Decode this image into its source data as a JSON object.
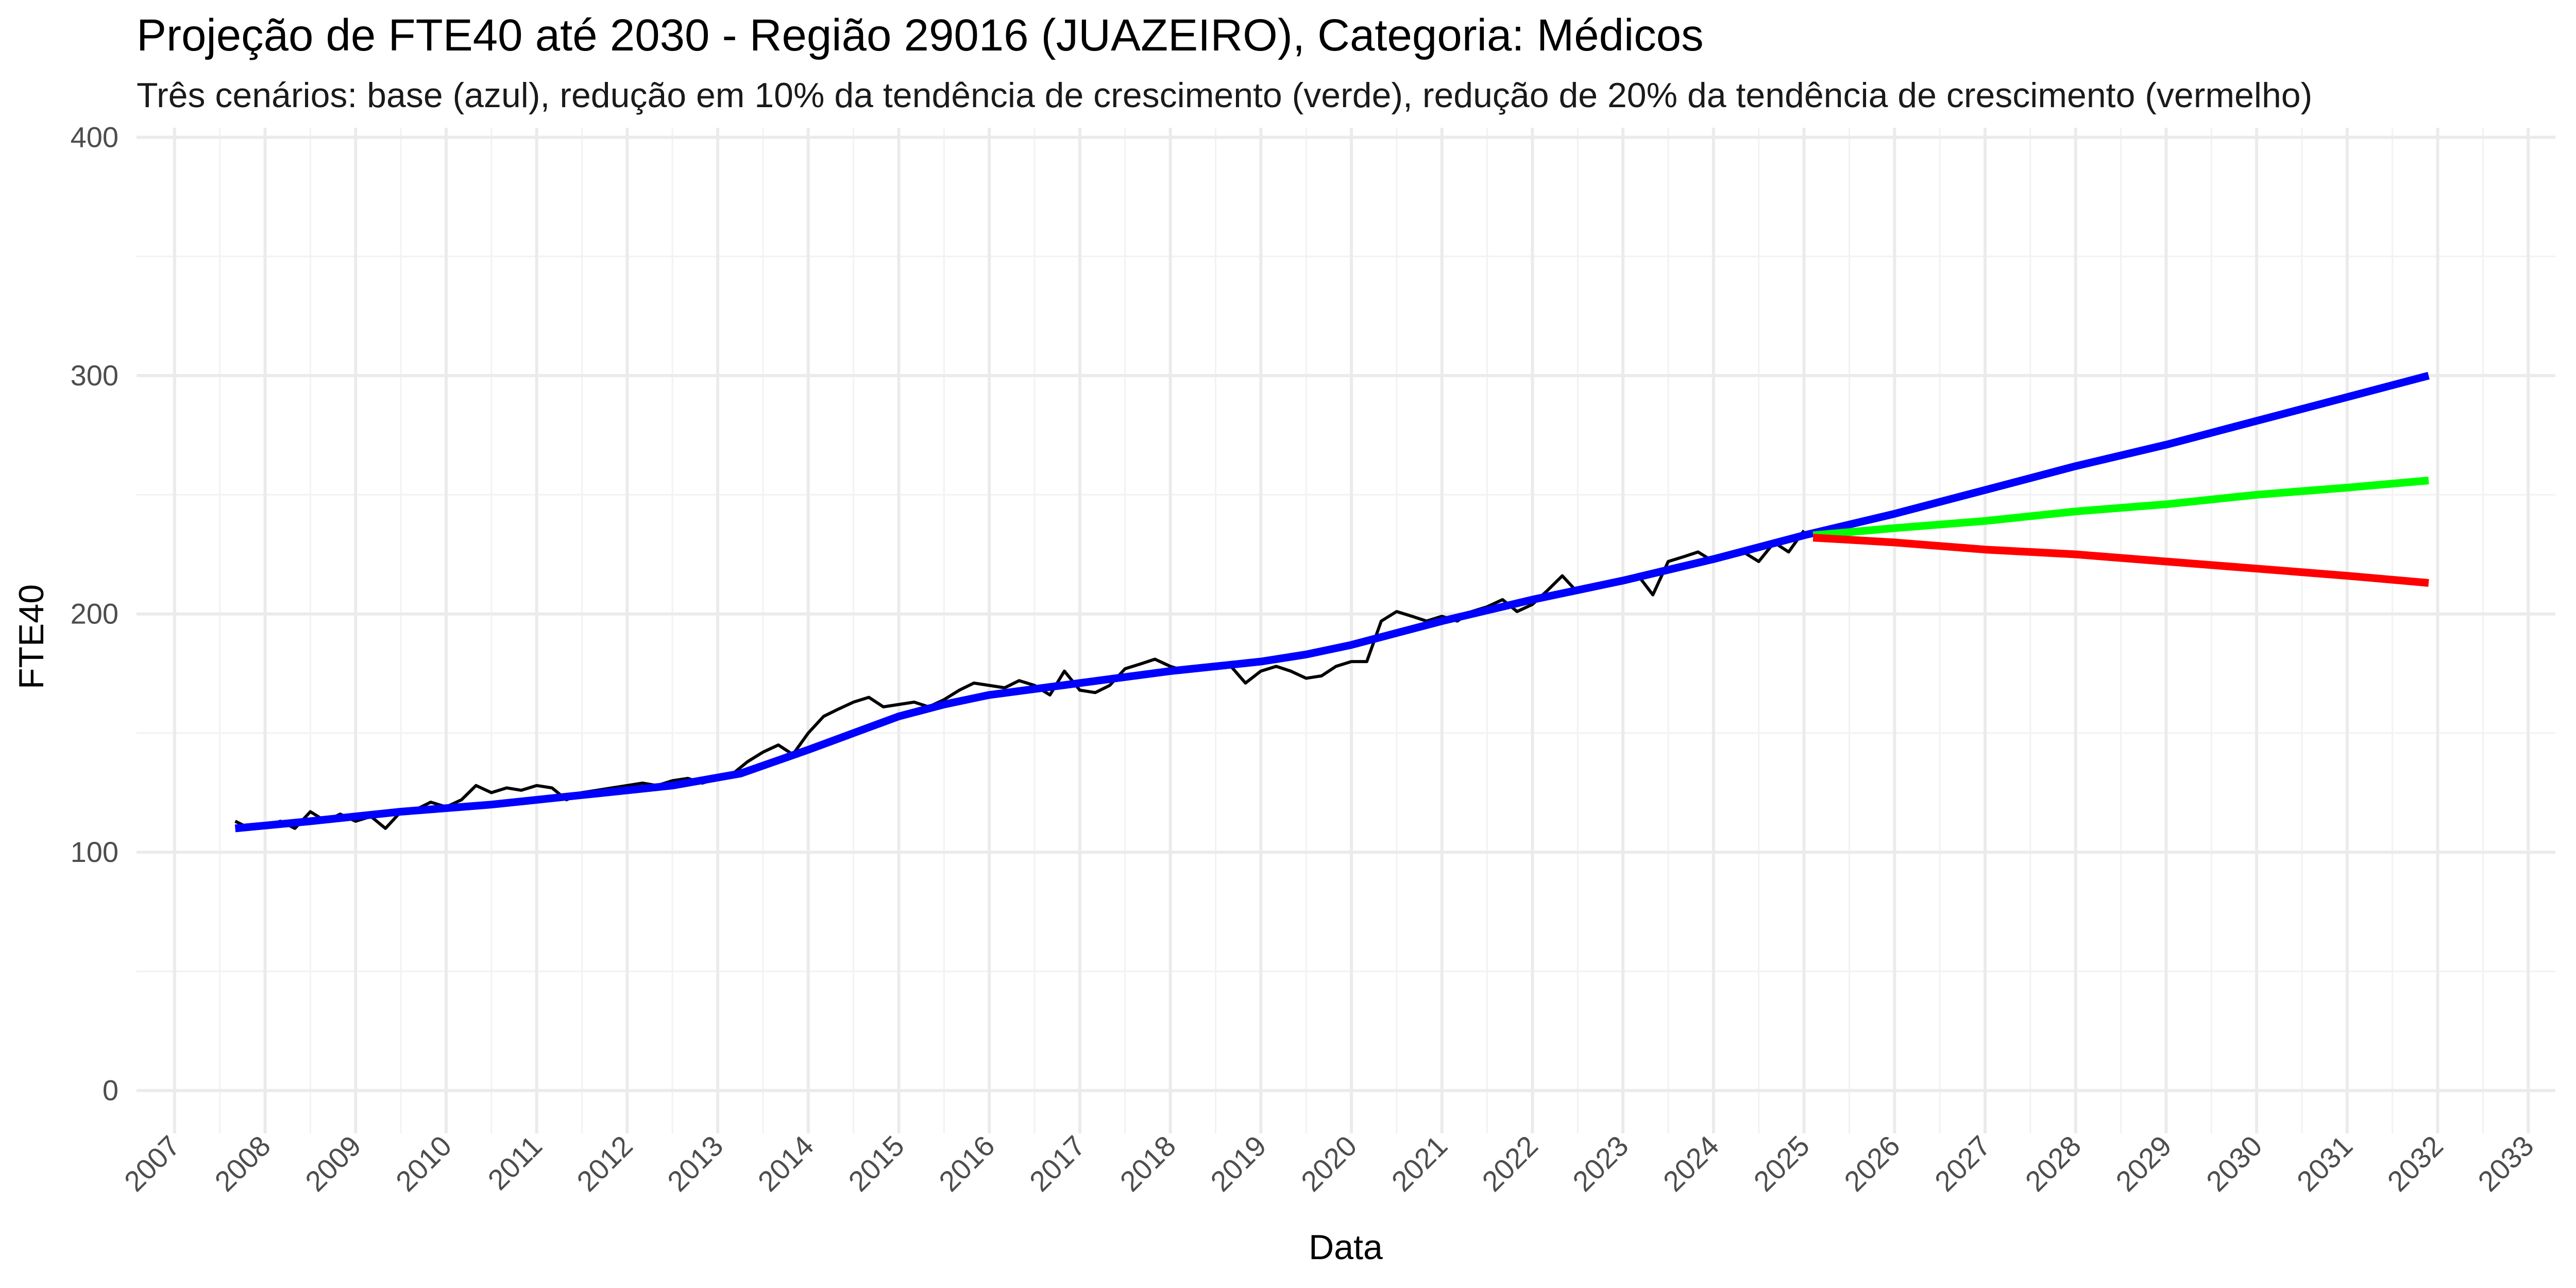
{
  "chart_data": {
    "type": "line",
    "title": "Projeção de FTE40 até 2030 - Região 29016 (JUAZEIRO), Categoria: Médicos",
    "subtitle": "Três cenários: base (azul), redução em 10% da tendência de crescimento (verde), redução de 20% da tendência de crescimento (vermelho)",
    "xlabel": "Data",
    "ylabel": "FTE40",
    "xlim": [
      2006.58,
      2033.3
    ],
    "ylim": [
      -18,
      404
    ],
    "y_ticks": [
      0,
      100,
      200,
      300,
      400
    ],
    "y_tick_labels": [
      "0",
      "100",
      "200",
      "300",
      "400"
    ],
    "x_ticks": [
      2007,
      2008,
      2009,
      2010,
      2011,
      2012,
      2013,
      2014,
      2015,
      2016,
      2017,
      2018,
      2019,
      2020,
      2021,
      2022,
      2023,
      2024,
      2025,
      2026,
      2027,
      2028,
      2029,
      2030,
      2031,
      2032,
      2033
    ],
    "x_tick_labels": [
      "2007",
      "2008",
      "2009",
      "2010",
      "2011",
      "2012",
      "2013",
      "2014",
      "2015",
      "2016",
      "2017",
      "2018",
      "2019",
      "2020",
      "2021",
      "2022",
      "2023",
      "2024",
      "2025",
      "2026",
      "2027",
      "2028",
      "2029",
      "2030",
      "2031",
      "2032",
      "2033"
    ],
    "grid": true,
    "legend": "none",
    "series": [
      {
        "color": "#000000",
        "x": [
          2007.67,
          2007.83,
          2008.0,
          2008.17,
          2008.33,
          2008.5,
          2008.67,
          2008.83,
          2009.0,
          2009.17,
          2009.33,
          2009.5,
          2009.67,
          2009.83,
          2010.0,
          2010.17,
          2010.33,
          2010.5,
          2010.67,
          2010.83,
          2011.0,
          2011.17,
          2011.33,
          2011.5,
          2011.67,
          2011.83,
          2012.0,
          2012.17,
          2012.33,
          2012.5,
          2012.67,
          2012.83,
          2013.0,
          2013.17,
          2013.33,
          2013.5,
          2013.67,
          2013.83,
          2014.0,
          2014.17,
          2014.33,
          2014.5,
          2014.67,
          2014.83,
          2015.0,
          2015.17,
          2015.33,
          2015.5,
          2015.67,
          2015.83,
          2016.0,
          2016.17,
          2016.33,
          2016.5,
          2016.67,
          2016.83,
          2017.0,
          2017.17,
          2017.33,
          2017.5,
          2017.67,
          2017.83,
          2018.0,
          2018.17,
          2018.33,
          2018.5,
          2018.67,
          2018.83,
          2019.0,
          2019.17,
          2019.33,
          2019.5,
          2019.67,
          2019.83,
          2020.0,
          2020.17,
          2020.33,
          2020.5,
          2020.67,
          2020.83,
          2021.0,
          2021.17,
          2021.33,
          2021.5,
          2021.67,
          2021.83,
          2022.0,
          2022.17,
          2022.33,
          2022.5,
          2022.67,
          2022.83,
          2023.0,
          2023.17,
          2023.33,
          2023.5,
          2023.67,
          2023.83,
          2024.0,
          2024.17,
          2024.33,
          2024.5,
          2024.67,
          2024.83,
          2025.0
        ],
        "y": [
          113,
          110,
          111,
          113,
          110,
          117,
          113,
          116,
          113,
          115,
          110,
          117,
          118,
          121,
          119,
          122,
          128,
          125,
          127,
          126,
          128,
          127,
          122,
          125,
          126,
          127,
          128,
          129,
          128,
          130,
          131,
          129,
          131,
          133,
          138,
          142,
          145,
          141,
          150,
          157,
          160,
          163,
          165,
          161,
          162,
          163,
          161,
          164,
          168,
          171,
          170,
          169,
          172,
          170,
          166,
          176,
          168,
          167,
          170,
          177,
          179,
          181,
          178,
          176,
          178,
          177,
          178,
          171,
          176,
          178,
          176,
          173,
          174,
          178,
          180,
          180,
          197,
          201,
          199,
          197,
          199,
          197,
          201,
          203,
          206,
          201,
          204,
          210,
          216,
          209,
          211,
          212,
          213,
          216,
          208,
          222,
          224,
          226,
          222,
          224,
          226,
          222,
          230,
          226,
          235
        ]
      },
      {
        "color": "#0000ff",
        "x": [
          2007.67,
          2008.5,
          2009.5,
          2010.5,
          2011.5,
          2012.5,
          2013.25,
          2014.0,
          2014.5,
          2015.0,
          2015.5,
          2016.0,
          2017.0,
          2018.0,
          2019.0,
          2019.5,
          2020.0,
          2020.5,
          2021.0,
          2022.0,
          2023.0,
          2024.0,
          2025.0,
          2026.0,
          2027.0,
          2028.0,
          2029.0,
          2030.0,
          2031.0,
          2031.9
        ],
        "y": [
          110,
          113,
          117,
          120,
          124,
          128,
          133,
          143,
          150,
          157,
          162,
          166,
          171,
          176,
          180,
          183,
          187,
          192,
          197,
          206,
          214,
          223,
          233,
          242,
          252,
          262,
          271,
          281,
          291,
          300
        ]
      },
      {
        "color": "#00ff00",
        "x": [
          2025.1,
          2026.0,
          2027.0,
          2028.0,
          2029.0,
          2030.0,
          2031.0,
          2031.9
        ],
        "y": [
          233,
          236,
          239,
          243,
          246,
          250,
          253,
          256
        ]
      },
      {
        "color": "#ff0000",
        "x": [
          2025.1,
          2026.0,
          2027.0,
          2028.0,
          2029.0,
          2030.0,
          2031.0,
          2031.9
        ],
        "y": [
          232,
          230,
          227,
          225,
          222,
          219,
          216,
          213
        ]
      }
    ]
  }
}
